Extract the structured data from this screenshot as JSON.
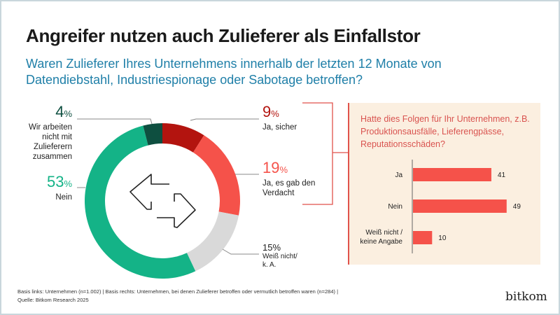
{
  "title": "Angreifer nutzen auch Zulieferer als Einfallstor",
  "subtitle": "Waren Zulieferer Ihres Unternehmens innerhalb der letzten 12 Monate von Datendiebstahl, Industriespionage oder Sabotage betroffen?",
  "center_icon": "arrows-left-right-icon",
  "chart_data": [
    {
      "type": "pie",
      "variant": "donut",
      "start": "top, clockwise",
      "slices": [
        {
          "label": "Ja, sicher",
          "value": 9,
          "pct": "9",
          "color": "#b3140f"
        },
        {
          "label": "Ja, es gab den Verdacht",
          "value": 19,
          "pct": "19",
          "color": "#f5524a"
        },
        {
          "label": "Weiß nicht/ k. A.",
          "value": 15,
          "pct": "15",
          "color": "#d9d9d9"
        },
        {
          "label": "Nein",
          "value": 53,
          "pct": "53",
          "color": "#14b387"
        },
        {
          "label": "Wir arbeiten nicht mit Zulieferern zusammen",
          "value": 4,
          "pct": "4",
          "color": "#0e4f40"
        }
      ],
      "unit": "%"
    },
    {
      "type": "bar",
      "orientation": "horizontal",
      "title": "Hatte dies Folgen für Ihr Unternehmen, z.B. Produktionsausfälle, Lieferengpässe, Reputationsschäden?",
      "categories": [
        "Ja",
        "Nein",
        "Weiß nicht / keine Angabe"
      ],
      "values": [
        41,
        49,
        10
      ],
      "color": "#f5524a",
      "background": "#fbefe0"
    }
  ],
  "footer": {
    "line1": "Basis links: Unternehmen (n=1.002) | Basis rechts: Unternehmen, bei denen Zulieferer betroffen oder vermutlich betroffen waren (n=284) |",
    "line2": "Quelle: Bitkom Research 2025"
  },
  "logo": "bitkom"
}
